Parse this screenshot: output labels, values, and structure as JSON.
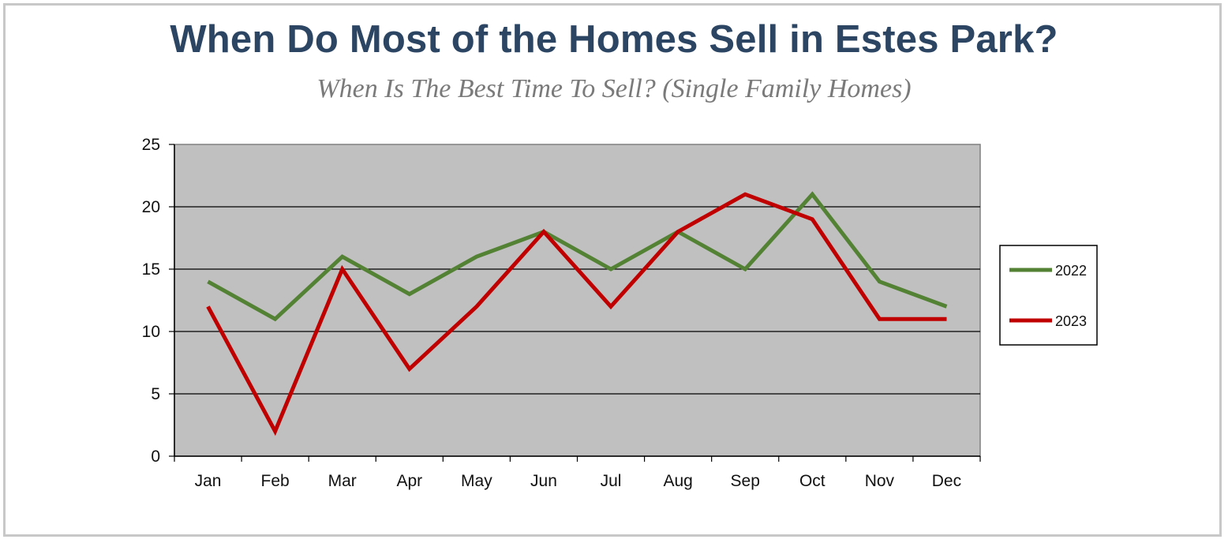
{
  "title": "When Do Most of the Homes Sell in Estes Park?",
  "subtitle": "When Is The Best Time To Sell? (Single Family Homes)",
  "chart_data": {
    "type": "line",
    "categories": [
      "Jan",
      "Feb",
      "Mar",
      "Apr",
      "May",
      "Jun",
      "Jul",
      "Aug",
      "Sep",
      "Oct",
      "Nov",
      "Dec"
    ],
    "ylim": [
      0,
      25
    ],
    "yticks": [
      0,
      5,
      10,
      15,
      20,
      25
    ],
    "grid": true,
    "legend_position": "right",
    "plot_background": "#c0c0c0",
    "series": [
      {
        "name": "2022",
        "color": "#548235",
        "values": [
          14,
          11,
          16,
          13,
          16,
          18,
          15,
          18,
          15,
          21,
          14,
          12
        ]
      },
      {
        "name": "2023",
        "color": "#c00000",
        "values": [
          12,
          2,
          15,
          7,
          12,
          18,
          12,
          18,
          21,
          19,
          11,
          11
        ]
      }
    ]
  }
}
